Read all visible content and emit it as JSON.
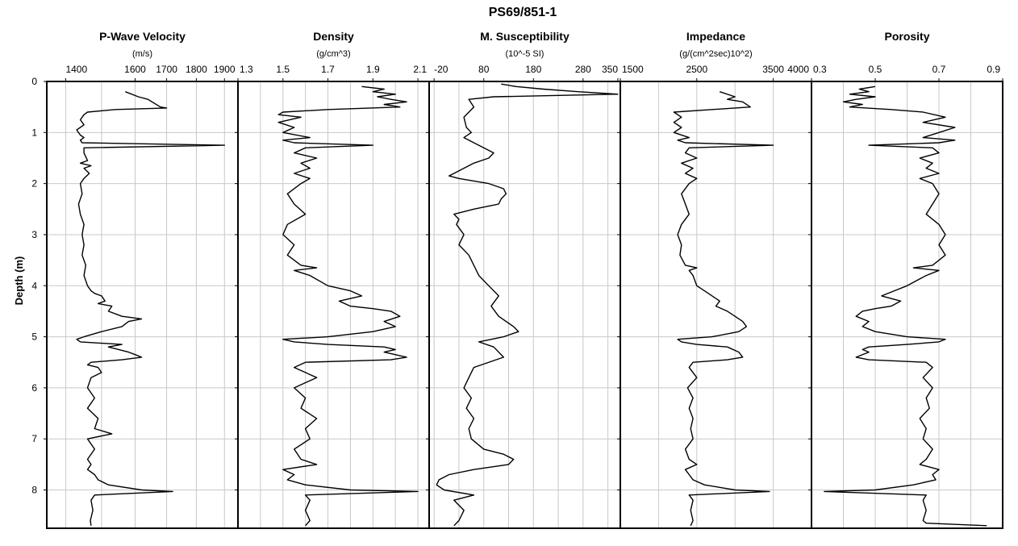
{
  "chart_data": {
    "type": "line",
    "title": "PS69/851-1",
    "ylabel": "Depth (m)",
    "ylim": [
      0,
      8.75
    ],
    "y_ticks": [
      0,
      1,
      2,
      3,
      4,
      5,
      6,
      7,
      8
    ],
    "y_inverted": true,
    "grid": true,
    "panels": [
      {
        "name": "P-Wave Velocity",
        "unit": "(m/s)",
        "xlim": [
          1350,
          1950
        ],
        "x_scale": "log",
        "x_ticks": [
          1400,
          1600,
          1700,
          1800,
          1900
        ],
        "x_grid": [
          1400,
          1500,
          1600,
          1700,
          1800,
          1900
        ],
        "depth": [
          0.2,
          0.3,
          0.35,
          0.5,
          0.52,
          0.55,
          0.6,
          0.65,
          0.75,
          0.85,
          0.95,
          1.05,
          1.1,
          1.15,
          1.2,
          1.25,
          1.3,
          1.4,
          1.55,
          1.6,
          1.65,
          1.7,
          1.8,
          1.9,
          2.0,
          2.2,
          2.4,
          2.6,
          2.8,
          3.0,
          3.2,
          3.4,
          3.6,
          3.8,
          4.0,
          4.1,
          4.15,
          4.2,
          4.3,
          4.35,
          4.4,
          4.5,
          4.6,
          4.65,
          4.7,
          4.8,
          4.9,
          5.0,
          5.05,
          5.1,
          5.15,
          5.2,
          5.3,
          5.35,
          5.4,
          5.45,
          5.5,
          5.55,
          5.6,
          5.7,
          5.8,
          6.0,
          6.2,
          6.4,
          6.6,
          6.8,
          6.9,
          7.0,
          7.2,
          7.4,
          7.5,
          7.6,
          7.7,
          7.8,
          7.9,
          8.0,
          8.03,
          8.1,
          8.2,
          8.4,
          8.6,
          8.7
        ],
        "values": [
          1570,
          1610,
          1640,
          1680,
          1700,
          1540,
          1460,
          1450,
          1440,
          1450,
          1430,
          1440,
          1450,
          1440,
          1445,
          1900,
          1450,
          1450,
          1460,
          1440,
          1470,
          1450,
          1465,
          1450,
          1440,
          1445,
          1435,
          1440,
          1450,
          1445,
          1450,
          1445,
          1455,
          1450,
          1460,
          1470,
          1480,
          1500,
          1510,
          1490,
          1530,
          1520,
          1560,
          1620,
          1580,
          1560,
          1500,
          1450,
          1430,
          1440,
          1560,
          1520,
          1580,
          1600,
          1620,
          1560,
          1470,
          1460,
          1490,
          1500,
          1470,
          1460,
          1480,
          1460,
          1490,
          1480,
          1530,
          1460,
          1480,
          1460,
          1470,
          1460,
          1480,
          1490,
          1520,
          1620,
          1720,
          1480,
          1470,
          1475,
          1468,
          1470
        ]
      },
      {
        "name": "Density",
        "unit": "(g/cm^3)",
        "xlim": [
          1.3,
          2.15
        ],
        "x_scale": "linear",
        "x_ticks": [
          1.3,
          1.5,
          1.7,
          1.9,
          2.1
        ],
        "x_grid": [
          1.3,
          1.4,
          1.5,
          1.6,
          1.7,
          1.8,
          1.9,
          2.0,
          2.1
        ],
        "depth": [
          0.1,
          0.15,
          0.2,
          0.25,
          0.3,
          0.35,
          0.4,
          0.45,
          0.5,
          0.55,
          0.6,
          0.65,
          0.7,
          0.8,
          0.9,
          1.0,
          1.1,
          1.15,
          1.2,
          1.25,
          1.3,
          1.4,
          1.5,
          1.6,
          1.7,
          1.8,
          1.9,
          2.0,
          2.2,
          2.4,
          2.6,
          2.8,
          3.0,
          3.2,
          3.4,
          3.6,
          3.65,
          3.7,
          3.8,
          4.0,
          4.1,
          4.2,
          4.3,
          4.4,
          4.45,
          4.5,
          4.6,
          4.7,
          4.8,
          4.9,
          5.0,
          5.05,
          5.1,
          5.15,
          5.2,
          5.25,
          5.3,
          5.4,
          5.45,
          5.5,
          5.6,
          5.8,
          6.0,
          6.2,
          6.4,
          6.6,
          6.8,
          7.0,
          7.2,
          7.4,
          7.5,
          7.6,
          7.7,
          7.8,
          7.9,
          8.0,
          8.03,
          8.1,
          8.2,
          8.4,
          8.6,
          8.7
        ],
        "values": [
          1.85,
          1.95,
          1.9,
          2.0,
          1.92,
          1.98,
          2.05,
          1.95,
          2.02,
          1.7,
          1.5,
          1.48,
          1.58,
          1.48,
          1.55,
          1.5,
          1.62,
          1.5,
          1.55,
          1.9,
          1.6,
          1.55,
          1.65,
          1.58,
          1.62,
          1.55,
          1.62,
          1.58,
          1.52,
          1.55,
          1.6,
          1.52,
          1.5,
          1.55,
          1.52,
          1.58,
          1.65,
          1.55,
          1.62,
          1.7,
          1.8,
          1.85,
          1.75,
          1.8,
          1.9,
          1.98,
          2.02,
          1.95,
          2.0,
          1.9,
          1.7,
          1.5,
          1.55,
          1.7,
          1.95,
          2.0,
          1.95,
          2.05,
          1.98,
          1.6,
          1.55,
          1.65,
          1.55,
          1.6,
          1.58,
          1.65,
          1.6,
          1.62,
          1.55,
          1.58,
          1.65,
          1.5,
          1.55,
          1.52,
          1.6,
          1.8,
          2.1,
          1.6,
          1.62,
          1.6,
          1.62,
          1.6
        ]
      },
      {
        "name": "M. Susceptibility",
        "unit": "(10^-5 SI)",
        "xlim": [
          -30,
          355
        ],
        "x_scale": "linear",
        "x_ticks": [
          -20,
          80,
          180,
          280,
          350
        ],
        "x_grid": [
          -20,
          30,
          80,
          130,
          180,
          230,
          280,
          330
        ],
        "depth": [
          0.05,
          0.1,
          0.15,
          0.2,
          0.25,
          0.3,
          0.35,
          0.5,
          0.7,
          0.9,
          1.0,
          1.1,
          1.2,
          1.3,
          1.4,
          1.5,
          1.6,
          1.7,
          1.8,
          1.85,
          1.9,
          2.0,
          2.1,
          2.2,
          2.3,
          2.4,
          2.5,
          2.6,
          2.7,
          2.8,
          3.0,
          3.2,
          3.4,
          3.6,
          3.8,
          4.0,
          4.2,
          4.4,
          4.6,
          4.8,
          4.9,
          5.0,
          5.1,
          5.2,
          5.4,
          5.6,
          5.8,
          6.0,
          6.2,
          6.4,
          6.6,
          6.8,
          7.0,
          7.2,
          7.3,
          7.4,
          7.5,
          7.6,
          7.7,
          7.8,
          7.9,
          8.0,
          8.1,
          8.2,
          8.4,
          8.6,
          8.7
        ],
        "values": [
          115,
          145,
          200,
          270,
          350,
          100,
          50,
          60,
          40,
          45,
          55,
          40,
          60,
          80,
          100,
          90,
          60,
          40,
          20,
          10,
          30,
          90,
          120,
          125,
          115,
          110,
          60,
          20,
          30,
          25,
          40,
          30,
          50,
          60,
          70,
          90,
          110,
          95,
          110,
          140,
          150,
          120,
          70,
          100,
          120,
          60,
          50,
          40,
          55,
          45,
          60,
          50,
          55,
          80,
          120,
          140,
          130,
          60,
          10,
          -10,
          -15,
          0,
          60,
          20,
          40,
          30,
          20
        ]
      },
      {
        "name": "Impedance",
        "unit": "(g/(cm^2sec)10^2)",
        "xlim": [
          1500,
          4000
        ],
        "x_scale": "linear",
        "x_ticks": [
          1500,
          2500,
          3500,
          4000
        ],
        "x_grid": [
          1500,
          2000,
          2500,
          3000,
          3500,
          4000
        ],
        "depth": [
          0.2,
          0.3,
          0.35,
          0.4,
          0.5,
          0.55,
          0.6,
          0.7,
          0.8,
          0.9,
          1.0,
          1.1,
          1.15,
          1.2,
          1.25,
          1.3,
          1.4,
          1.5,
          1.6,
          1.7,
          1.8,
          1.9,
          2.0,
          2.2,
          2.4,
          2.6,
          2.8,
          3.0,
          3.2,
          3.4,
          3.6,
          3.65,
          3.7,
          3.8,
          4.0,
          4.1,
          4.2,
          4.3,
          4.4,
          4.5,
          4.6,
          4.7,
          4.8,
          4.9,
          5.0,
          5.05,
          5.1,
          5.15,
          5.2,
          5.3,
          5.4,
          5.45,
          5.5,
          5.6,
          5.8,
          6.0,
          6.2,
          6.4,
          6.6,
          6.8,
          7.0,
          7.2,
          7.4,
          7.5,
          7.6,
          7.7,
          7.8,
          7.9,
          8.0,
          8.03,
          8.1,
          8.2,
          8.4,
          8.6,
          8.7
        ],
        "values": [
          2800,
          3000,
          2900,
          3100,
          3200,
          2700,
          2200,
          2300,
          2200,
          2300,
          2200,
          2400,
          2250,
          2350,
          3500,
          2400,
          2350,
          2500,
          2300,
          2450,
          2350,
          2500,
          2400,
          2300,
          2350,
          2400,
          2300,
          2250,
          2300,
          2280,
          2350,
          2500,
          2400,
          2450,
          2500,
          2600,
          2700,
          2800,
          2750,
          2900,
          3000,
          3100,
          3150,
          3050,
          2700,
          2250,
          2300,
          2500,
          2900,
          3050,
          3100,
          2900,
          2450,
          2400,
          2500,
          2380,
          2450,
          2400,
          2450,
          2420,
          2450,
          2350,
          2400,
          2500,
          2350,
          2400,
          2450,
          2600,
          3000,
          3450,
          2400,
          2450,
          2420,
          2450,
          2420
        ]
      },
      {
        "name": "Porosity",
        "unit": "",
        "xlim": [
          0.3,
          0.9
        ],
        "x_scale": "linear",
        "x_ticks": [
          0.3,
          0.5,
          0.7,
          0.9
        ],
        "x_grid": [
          0.3,
          0.4,
          0.5,
          0.6,
          0.7,
          0.8,
          0.9
        ],
        "depth": [
          0.1,
          0.15,
          0.2,
          0.25,
          0.3,
          0.35,
          0.4,
          0.45,
          0.5,
          0.55,
          0.6,
          0.7,
          0.8,
          0.9,
          1.0,
          1.1,
          1.15,
          1.2,
          1.25,
          1.3,
          1.4,
          1.5,
          1.6,
          1.7,
          1.8,
          1.9,
          2.0,
          2.2,
          2.4,
          2.6,
          2.8,
          3.0,
          3.2,
          3.4,
          3.6,
          3.65,
          3.7,
          3.8,
          4.0,
          4.1,
          4.2,
          4.3,
          4.4,
          4.45,
          4.5,
          4.6,
          4.7,
          4.8,
          4.9,
          5.0,
          5.05,
          5.1,
          5.15,
          5.2,
          5.25,
          5.3,
          5.4,
          5.45,
          5.5,
          5.6,
          5.8,
          6.0,
          6.2,
          6.4,
          6.6,
          6.8,
          7.0,
          7.2,
          7.4,
          7.5,
          7.6,
          7.7,
          7.8,
          7.9,
          8.0,
          8.03,
          8.1,
          8.2,
          8.4,
          8.6,
          8.65,
          8.7
        ],
        "values": [
          0.5,
          0.45,
          0.48,
          0.42,
          0.5,
          0.44,
          0.4,
          0.46,
          0.42,
          0.55,
          0.65,
          0.72,
          0.65,
          0.75,
          0.7,
          0.65,
          0.75,
          0.7,
          0.48,
          0.68,
          0.7,
          0.64,
          0.68,
          0.66,
          0.7,
          0.64,
          0.68,
          0.7,
          0.68,
          0.66,
          0.7,
          0.72,
          0.7,
          0.72,
          0.68,
          0.62,
          0.7,
          0.66,
          0.6,
          0.56,
          0.52,
          0.58,
          0.55,
          0.5,
          0.46,
          0.44,
          0.48,
          0.46,
          0.5,
          0.6,
          0.72,
          0.7,
          0.6,
          0.48,
          0.46,
          0.48,
          0.44,
          0.48,
          0.66,
          0.68,
          0.65,
          0.68,
          0.66,
          0.67,
          0.64,
          0.66,
          0.65,
          0.68,
          0.66,
          0.64,
          0.7,
          0.68,
          0.69,
          0.62,
          0.5,
          0.34,
          0.66,
          0.65,
          0.66,
          0.65,
          0.66,
          0.85
        ]
      }
    ]
  }
}
